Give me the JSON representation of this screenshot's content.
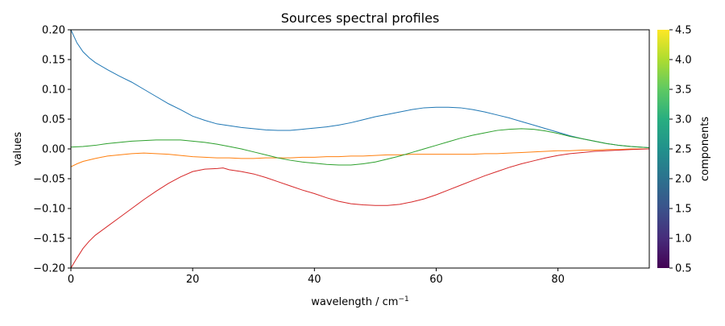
{
  "chart_data": {
    "type": "line",
    "title": "Sources spectral profiles",
    "xlabel": "wavelength / cm",
    "xlabel_superscript": "−1",
    "ylabel": "values",
    "xlim": [
      0,
      95
    ],
    "ylim": [
      -0.2,
      0.2
    ],
    "xticks": [
      0,
      20,
      40,
      60,
      80
    ],
    "xtick_labels": [
      "0",
      "20",
      "40",
      "60",
      "80"
    ],
    "yticks": [
      -0.2,
      -0.15,
      -0.1,
      -0.05,
      0.0,
      0.05,
      0.1,
      0.15,
      0.2
    ],
    "ytick_labels": [
      "−0.20",
      "−0.15",
      "−0.10",
      "−0.05",
      "0.00",
      "0.05",
      "0.10",
      "0.15",
      "0.20"
    ],
    "grid": false,
    "legend": "none",
    "series": [
      {
        "color": "#1f77b4",
        "x": [
          0,
          1,
          2,
          3,
          4,
          6,
          8,
          10,
          12,
          14,
          16,
          18,
          20,
          22,
          24,
          26,
          28,
          30,
          32,
          34,
          36,
          38,
          40,
          42,
          44,
          46,
          48,
          50,
          52,
          54,
          56,
          58,
          60,
          62,
          64,
          66,
          68,
          70,
          72,
          74,
          76,
          78,
          80,
          82,
          84,
          86,
          88,
          90,
          92,
          95
        ],
        "y": [
          0.2,
          0.178,
          0.163,
          0.153,
          0.145,
          0.133,
          0.122,
          0.112,
          0.1,
          0.088,
          0.076,
          0.066,
          0.055,
          0.048,
          0.042,
          0.039,
          0.036,
          0.034,
          0.032,
          0.031,
          0.031,
          0.033,
          0.035,
          0.037,
          0.04,
          0.044,
          0.049,
          0.054,
          0.058,
          0.062,
          0.066,
          0.069,
          0.07,
          0.07,
          0.069,
          0.066,
          0.062,
          0.057,
          0.052,
          0.046,
          0.04,
          0.034,
          0.028,
          0.022,
          0.017,
          0.013,
          0.009,
          0.006,
          0.004,
          0.002
        ]
      },
      {
        "color": "#ff7f0e",
        "x": [
          0,
          1,
          2,
          4,
          6,
          8,
          10,
          12,
          14,
          16,
          18,
          20,
          22,
          24,
          26,
          28,
          30,
          32,
          34,
          36,
          38,
          40,
          42,
          44,
          46,
          48,
          50,
          52,
          54,
          56,
          58,
          60,
          62,
          64,
          66,
          68,
          70,
          72,
          74,
          76,
          78,
          80,
          82,
          84,
          86,
          88,
          90,
          92,
          95
        ],
        "y": [
          -0.03,
          -0.025,
          -0.021,
          -0.016,
          -0.012,
          -0.01,
          -0.008,
          -0.007,
          -0.008,
          -0.009,
          -0.011,
          -0.013,
          -0.014,
          -0.015,
          -0.015,
          -0.016,
          -0.016,
          -0.015,
          -0.015,
          -0.015,
          -0.014,
          -0.014,
          -0.013,
          -0.013,
          -0.012,
          -0.012,
          -0.011,
          -0.01,
          -0.01,
          -0.009,
          -0.009,
          -0.009,
          -0.009,
          -0.009,
          -0.009,
          -0.008,
          -0.008,
          -0.007,
          -0.006,
          -0.005,
          -0.004,
          -0.003,
          -0.003,
          -0.002,
          -0.002,
          -0.001,
          -0.001,
          0.0,
          0.0
        ]
      },
      {
        "color": "#2ca02c",
        "x": [
          0,
          2,
          4,
          6,
          8,
          10,
          12,
          14,
          16,
          18,
          20,
          22,
          24,
          26,
          28,
          30,
          32,
          34,
          36,
          38,
          40,
          42,
          44,
          46,
          48,
          50,
          52,
          54,
          56,
          58,
          60,
          62,
          64,
          66,
          68,
          70,
          72,
          74,
          76,
          78,
          80,
          82,
          84,
          86,
          88,
          90,
          92,
          95
        ],
        "y": [
          0.003,
          0.004,
          0.006,
          0.009,
          0.011,
          0.013,
          0.014,
          0.015,
          0.015,
          0.015,
          0.013,
          0.011,
          0.008,
          0.004,
          0.0,
          -0.005,
          -0.01,
          -0.015,
          -0.019,
          -0.022,
          -0.024,
          -0.026,
          -0.027,
          -0.027,
          -0.025,
          -0.022,
          -0.017,
          -0.012,
          -0.006,
          0.0,
          0.006,
          0.012,
          0.018,
          0.023,
          0.027,
          0.031,
          0.033,
          0.034,
          0.033,
          0.03,
          0.026,
          0.021,
          0.017,
          0.013,
          0.009,
          0.006,
          0.004,
          0.002
        ]
      },
      {
        "color": "#d62728",
        "x": [
          0,
          1,
          2,
          3,
          4,
          6,
          8,
          10,
          12,
          14,
          16,
          18,
          20,
          22,
          24,
          25,
          26,
          28,
          30,
          32,
          34,
          36,
          38,
          40,
          42,
          44,
          46,
          48,
          50,
          52,
          54,
          56,
          58,
          60,
          62,
          64,
          66,
          68,
          70,
          72,
          74,
          76,
          78,
          80,
          82,
          84,
          86,
          88,
          90,
          92,
          95
        ],
        "y": [
          -0.2,
          -0.183,
          -0.167,
          -0.155,
          -0.145,
          -0.13,
          -0.115,
          -0.1,
          -0.085,
          -0.071,
          -0.058,
          -0.047,
          -0.038,
          -0.034,
          -0.033,
          -0.032,
          -0.035,
          -0.038,
          -0.042,
          -0.048,
          -0.055,
          -0.062,
          -0.069,
          -0.075,
          -0.082,
          -0.088,
          -0.092,
          -0.094,
          -0.095,
          -0.095,
          -0.093,
          -0.089,
          -0.084,
          -0.077,
          -0.069,
          -0.061,
          -0.053,
          -0.045,
          -0.038,
          -0.031,
          -0.025,
          -0.02,
          -0.015,
          -0.011,
          -0.008,
          -0.006,
          -0.004,
          -0.003,
          -0.002,
          -0.001,
          0.0
        ]
      }
    ],
    "colorbar": {
      "label": "components",
      "colormap": "viridis",
      "range": [
        0.5,
        4.5
      ],
      "ticks": [
        0.5,
        1.0,
        1.5,
        2.0,
        2.5,
        3.0,
        3.5,
        4.0,
        4.5
      ],
      "tick_labels": [
        "0.5",
        "1.0",
        "1.5",
        "2.0",
        "2.5",
        "3.0",
        "3.5",
        "4.0",
        "4.5"
      ]
    }
  }
}
